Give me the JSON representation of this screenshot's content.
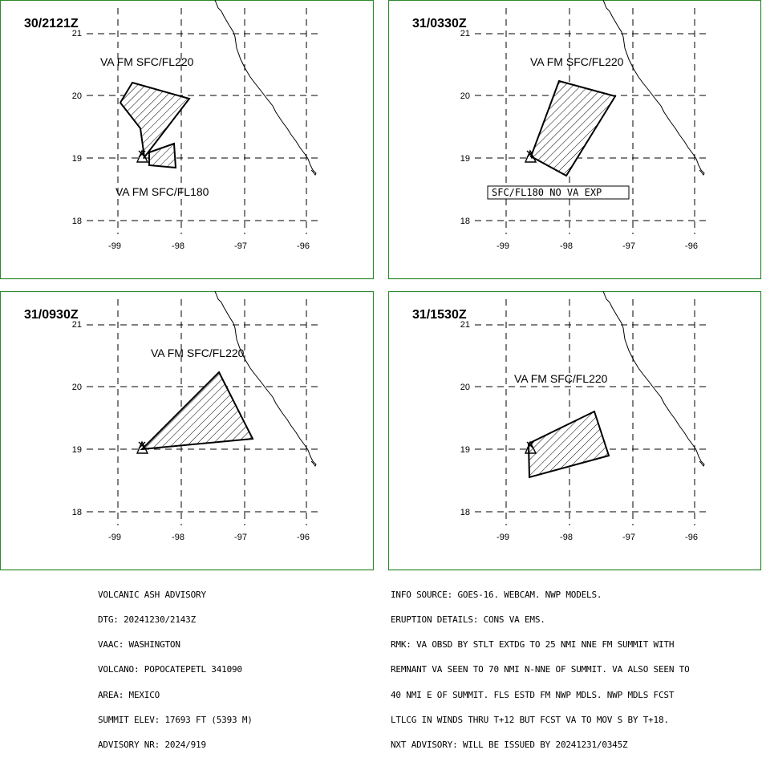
{
  "panels": [
    {
      "time": "30/2121Z",
      "labels": [
        "VA FM SFC/FL220",
        "VA FM SFC/FL180"
      ],
      "box_label": ""
    },
    {
      "time": "31/0330Z",
      "labels": [
        "VA FM SFC/FL220"
      ],
      "box_label": "SFC/FL180 NO VA EXP"
    },
    {
      "time": "31/0930Z",
      "labels": [
        "VA FM SFC/FL220"
      ],
      "box_label": ""
    },
    {
      "time": "31/1530Z",
      "labels": [
        "VA FM SFC/FL220"
      ],
      "box_label": ""
    }
  ],
  "lat_ticks": [
    "21",
    "20",
    "19",
    "18"
  ],
  "lon_ticks": [
    "-99",
    "-98",
    "-97",
    "-96"
  ],
  "advisory_left": [
    "VOLCANIC ASH ADVISORY",
    "DTG: 20241230/2143Z",
    "VAAC: WASHINGTON",
    "VOLCANO: POPOCATEPETL 341090",
    "AREA: MEXICO",
    "SUMMIT ELEV: 17693 FT (5393 M)",
    "ADVISORY NR: 2024/919"
  ],
  "advisory_right": [
    "INFO SOURCE: GOES-16. WEBCAM. NWP MODELS.",
    "ERUPTION DETAILS: CONS VA EMS.",
    "RMK: VA OBSD BY STLT EXTDG TO 25 NMI NNE FM SUMMIT WITH",
    "REMNANT VA SEEN TO 70 NMI N-NNE OF SUMMIT. VA ALSO SEEN TO",
    "40 NMI E OF SUMMIT. FLS ESTD FM NWP MDLS. NWP MDLS FCST",
    "LTLCG IN WINDS THRU T+12 BUT FCST VA TO MOV S BY T+18.",
    "NXT ADVISORY: WILL BE ISSUED BY 20241231/0345Z"
  ],
  "colors": {
    "panel_border": "#2e8b2e",
    "ink": "#000000",
    "background": "#ffffff"
  }
}
